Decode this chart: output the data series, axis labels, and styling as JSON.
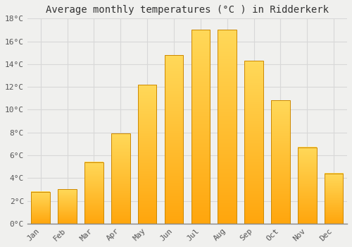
{
  "months": [
    "Jan",
    "Feb",
    "Mar",
    "Apr",
    "May",
    "Jun",
    "Jul",
    "Aug",
    "Sep",
    "Oct",
    "Nov",
    "Dec"
  ],
  "values": [
    2.8,
    3.0,
    5.4,
    7.9,
    12.2,
    14.8,
    17.0,
    17.0,
    14.3,
    10.8,
    6.7,
    4.4
  ],
  "bar_color_main": "#FFA800",
  "bar_color_highlight": "#FFD060",
  "bar_edge_color": "#CC8800",
  "title": "Average monthly temperatures (°C ) in Ridderkerk",
  "ylim": [
    0,
    18
  ],
  "yticks": [
    0,
    2,
    4,
    6,
    8,
    10,
    12,
    14,
    16,
    18
  ],
  "ytick_labels": [
    "0°C",
    "2°C",
    "4°C",
    "6°C",
    "8°C",
    "10°C",
    "12°C",
    "14°C",
    "16°C",
    "18°C"
  ],
  "background_color": "#f0f0ee",
  "grid_color": "#d8d8d8",
  "title_fontsize": 10,
  "tick_fontsize": 8,
  "font_family": "monospace",
  "bar_width": 0.7
}
